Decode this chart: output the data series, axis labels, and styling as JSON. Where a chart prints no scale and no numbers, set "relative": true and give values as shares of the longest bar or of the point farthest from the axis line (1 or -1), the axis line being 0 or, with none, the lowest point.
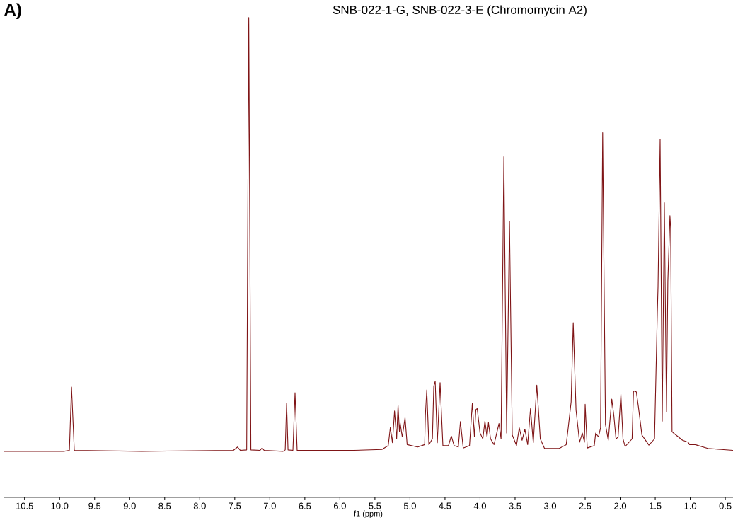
{
  "chart_data": {
    "type": "line",
    "title": "SNB-022-1-G, SNB-022-3-E (Chromomycin A2)",
    "xlabel": "f1 (ppm)",
    "annotations": [
      "A)"
    ],
    "relative": true,
    "xlim": [
      10.8,
      0.39
    ],
    "xticks": [
      {
        "value": 10.5,
        "label": "10.5"
      },
      {
        "value": 10.0,
        "label": "10.0"
      },
      {
        "value": 9.5,
        "label": "9.5"
      },
      {
        "value": 9.0,
        "label": "9.0"
      },
      {
        "value": 8.5,
        "label": "8.5"
      },
      {
        "value": 8.0,
        "label": "8.0"
      },
      {
        "value": 7.5,
        "label": "7.5"
      },
      {
        "value": 7.0,
        "label": "7.0"
      },
      {
        "value": 6.5,
        "label": "6.5"
      },
      {
        "value": 6.0,
        "label": "6.0"
      },
      {
        "value": 5.5,
        "label": "5.5"
      },
      {
        "value": 5.0,
        "label": "5.0"
      },
      {
        "value": 4.5,
        "label": "4.5"
      },
      {
        "value": 4.0,
        "label": "4.0"
      },
      {
        "value": 3.5,
        "label": "3.5"
      },
      {
        "value": 3.0,
        "label": "3.0"
      },
      {
        "value": 2.5,
        "label": "2.5"
      },
      {
        "value": 2.0,
        "label": "2.0"
      },
      {
        "value": 1.5,
        "label": "1.5"
      },
      {
        "value": 1.0,
        "label": "1.0"
      },
      {
        "value": 0.5,
        "label": "0.5"
      }
    ],
    "series": [
      {
        "color": "#7f1416",
        "x": [
          10.8,
          9.94,
          9.86,
          9.83,
          9.79,
          8.83,
          7.52,
          7.46,
          7.42,
          7.33,
          7.3,
          7.27,
          7.14,
          7.11,
          7.08,
          6.81,
          6.78,
          6.76,
          6.74,
          6.67,
          6.64,
          6.61,
          5.8,
          5.4,
          5.31,
          5.28,
          5.25,
          5.22,
          5.19,
          5.17,
          5.15,
          5.14,
          5.11,
          5.07,
          5.04,
          4.89,
          4.79,
          4.78,
          4.76,
          4.73,
          4.68,
          4.66,
          4.64,
          4.61,
          4.57,
          4.53,
          4.45,
          4.41,
          4.37,
          4.31,
          4.28,
          4.24,
          4.15,
          4.11,
          4.08,
          4.06,
          4.04,
          4.0,
          3.96,
          3.93,
          3.9,
          3.88,
          3.85,
          3.8,
          3.73,
          3.7,
          3.66,
          3.62,
          3.58,
          3.54,
          3.48,
          3.44,
          3.4,
          3.36,
          3.32,
          3.28,
          3.24,
          3.19,
          3.17,
          3.14,
          3.08,
          2.87,
          2.77,
          2.74,
          2.7,
          2.67,
          2.63,
          2.58,
          2.54,
          2.51,
          2.5,
          2.47,
          2.37,
          2.35,
          2.31,
          2.28,
          2.25,
          2.21,
          2.17,
          2.12,
          2.09,
          2.06,
          2.03,
          1.99,
          1.96,
          1.93,
          1.83,
          1.81,
          1.77,
          1.74,
          1.69,
          1.59,
          1.51,
          1.47,
          1.46,
          1.43,
          1.4,
          1.37,
          1.34,
          1.32,
          1.29,
          1.28,
          1.26,
          1.23,
          1.11,
          1.03,
          1.01,
          0.93,
          0.75,
          0.39
        ],
        "values": [
          0.096,
          0.096,
          0.098,
          0.23,
          0.098,
          0.096,
          0.098,
          0.105,
          0.098,
          0.099,
          1,
          0.099,
          0.098,
          0.103,
          0.098,
          0.096,
          0.099,
          0.196,
          0.099,
          0.098,
          0.218,
          0.098,
          0.098,
          0.1,
          0.108,
          0.146,
          0.114,
          0.18,
          0.122,
          0.192,
          0.137,
          0.155,
          0.126,
          0.166,
          0.11,
          0.105,
          0.11,
          0.171,
          0.224,
          0.11,
          0.122,
          0.232,
          0.242,
          0.114,
          0.239,
          0.108,
          0.108,
          0.128,
          0.108,
          0.105,
          0.158,
          0.103,
          0.108,
          0.196,
          0.126,
          0.183,
          0.185,
          0.134,
          0.122,
          0.159,
          0.126,
          0.156,
          0.122,
          0.11,
          0.154,
          0.122,
          0.71,
          0.134,
          0.575,
          0.13,
          0.108,
          0.145,
          0.119,
          0.142,
          0.11,
          0.185,
          0.114,
          0.234,
          0.19,
          0.122,
          0.102,
          0.102,
          0.11,
          0.147,
          0.199,
          0.364,
          0.182,
          0.115,
          0.134,
          0.115,
          0.194,
          0.103,
          0.108,
          0.134,
          0.126,
          0.145,
          0.76,
          0.152,
          0.119,
          0.205,
          0.17,
          0.122,
          0.126,
          0.215,
          0.122,
          0.106,
          0.122,
          0.222,
          0.22,
          0.189,
          0.13,
          0.109,
          0.122,
          0.385,
          0.439,
          0.746,
          0.159,
          0.614,
          0.178,
          0.45,
          0.587,
          0.561,
          0.137,
          0.133,
          0.119,
          0.115,
          0.11,
          0.11,
          0.102,
          0.098
        ]
      }
    ]
  }
}
